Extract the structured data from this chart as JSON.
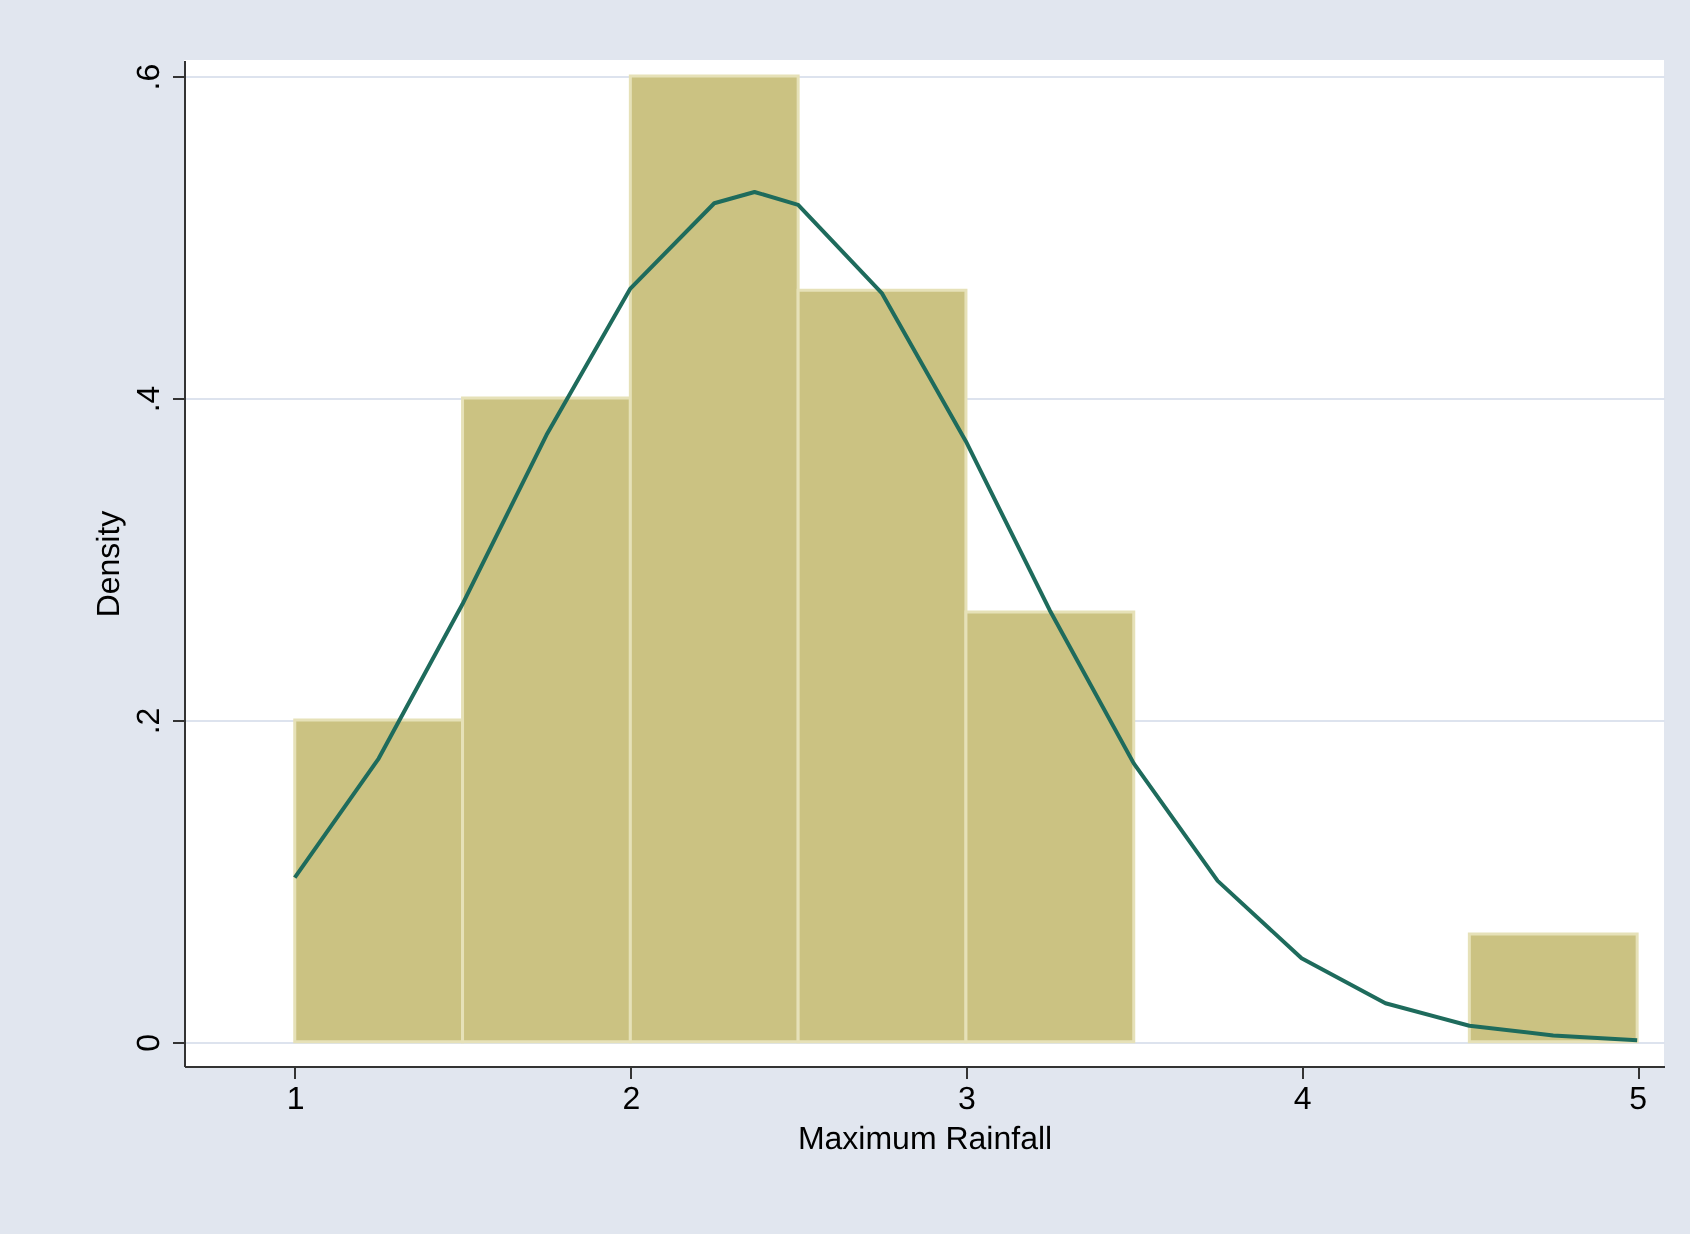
{
  "chart_data": {
    "type": "histogram",
    "xlabel": "Maximum Rainfall",
    "ylabel": "Density",
    "series": [
      {
        "color": "#cbc282",
        "bins": [
          1,
          1.5,
          2,
          2.5,
          3,
          3.5,
          4,
          4.5,
          5
        ],
        "values": [
          0.2,
          0.4,
          0.6,
          0.467,
          0.267,
          0,
          0,
          0.067
        ]
      },
      {
        "type": "line",
        "color": "#1e6b5c",
        "x": [
          1,
          1.25,
          1.5,
          1.75,
          2,
          2.25,
          2.37,
          2.5,
          2.75,
          3,
          3.25,
          3.5,
          3.75,
          4,
          4.25,
          4.5,
          4.75,
          5
        ],
        "values": [
          0.102,
          0.176,
          0.272,
          0.377,
          0.468,
          0.521,
          0.528,
          0.52,
          0.465,
          0.373,
          0.268,
          0.173,
          0.1,
          0.052,
          0.024,
          0.01,
          0.004,
          0.001
        ]
      }
    ],
    "xlim": [
      0.67,
      5.08
    ],
    "xticks": [
      1,
      2,
      3,
      4,
      5
    ],
    "ylim": [
      -0.015,
      0.61
    ],
    "yticks": [
      0,
      {
        "value": 0.2,
        "label": ".2"
      },
      {
        "value": 0.4,
        "label": ".4"
      },
      {
        "value": 0.6,
        "label": ".6"
      }
    ],
    "grid": "y"
  }
}
